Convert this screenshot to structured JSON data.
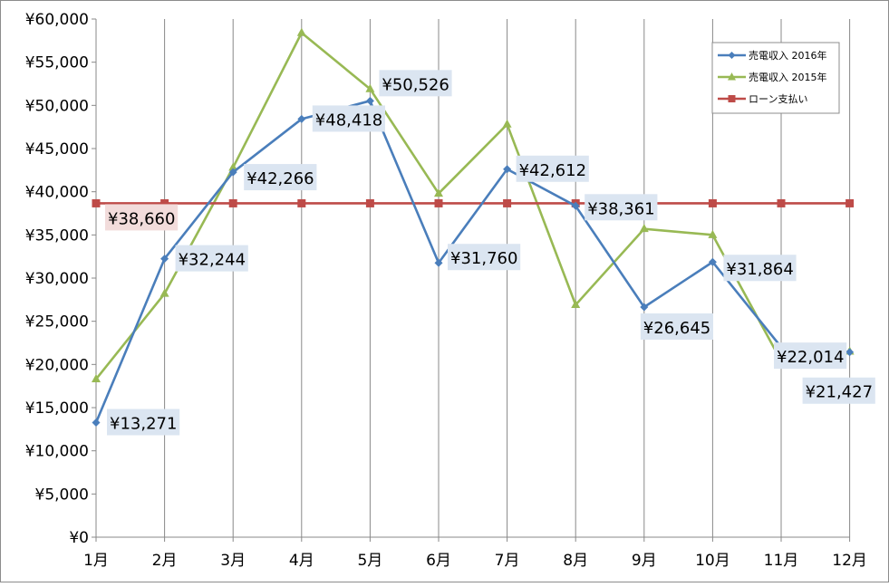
{
  "chart_data": {
    "type": "line",
    "categories": [
      "1月",
      "2月",
      "3月",
      "4月",
      "5月",
      "6月",
      "7月",
      "8月",
      "9月",
      "10月",
      "11月",
      "12月"
    ],
    "ylim": [
      0,
      60000
    ],
    "ytick_values": [
      0,
      5000,
      10000,
      15000,
      20000,
      25000,
      30000,
      35000,
      40000,
      45000,
      50000,
      55000,
      60000
    ],
    "ytick_labels": [
      "¥0",
      "¥5,000",
      "¥10,000",
      "¥15,000",
      "¥20,000",
      "¥25,000",
      "¥30,000",
      "¥35,000",
      "¥40,000",
      "¥45,000",
      "¥50,000",
      "¥55,000",
      "¥60,000"
    ],
    "grid": "vertical",
    "legend_position": "top-right",
    "series": [
      {
        "name": "売電収入 2016年",
        "color": "#4a7ebb",
        "marker": "diamond",
        "values": [
          13271,
          32244,
          42266,
          48418,
          50526,
          31760,
          42612,
          38361,
          26645,
          31864,
          22014,
          21427
        ],
        "data_labels": [
          "¥13,271",
          "¥32,244",
          "¥42,266",
          "¥48,418",
          "¥50,526",
          "¥31,760",
          "¥42,612",
          "¥38,361",
          "¥26,645",
          "¥31,864",
          "¥22,014",
          "¥21,427"
        ]
      },
      {
        "name": "売電収入 2015年",
        "color": "#98b954",
        "marker": "triangle",
        "values": [
          18300,
          28200,
          42800,
          58400,
          51900,
          39800,
          47800,
          26900,
          35700,
          35000,
          20400,
          21500
        ]
      },
      {
        "name": "ローン支払い",
        "color": "#be4b48",
        "marker": "square",
        "values": [
          38660,
          38660,
          38660,
          38660,
          38660,
          38660,
          38660,
          38660,
          38660,
          38660,
          38660,
          38660
        ],
        "data_labels": [
          "¥38,660"
        ]
      }
    ]
  }
}
